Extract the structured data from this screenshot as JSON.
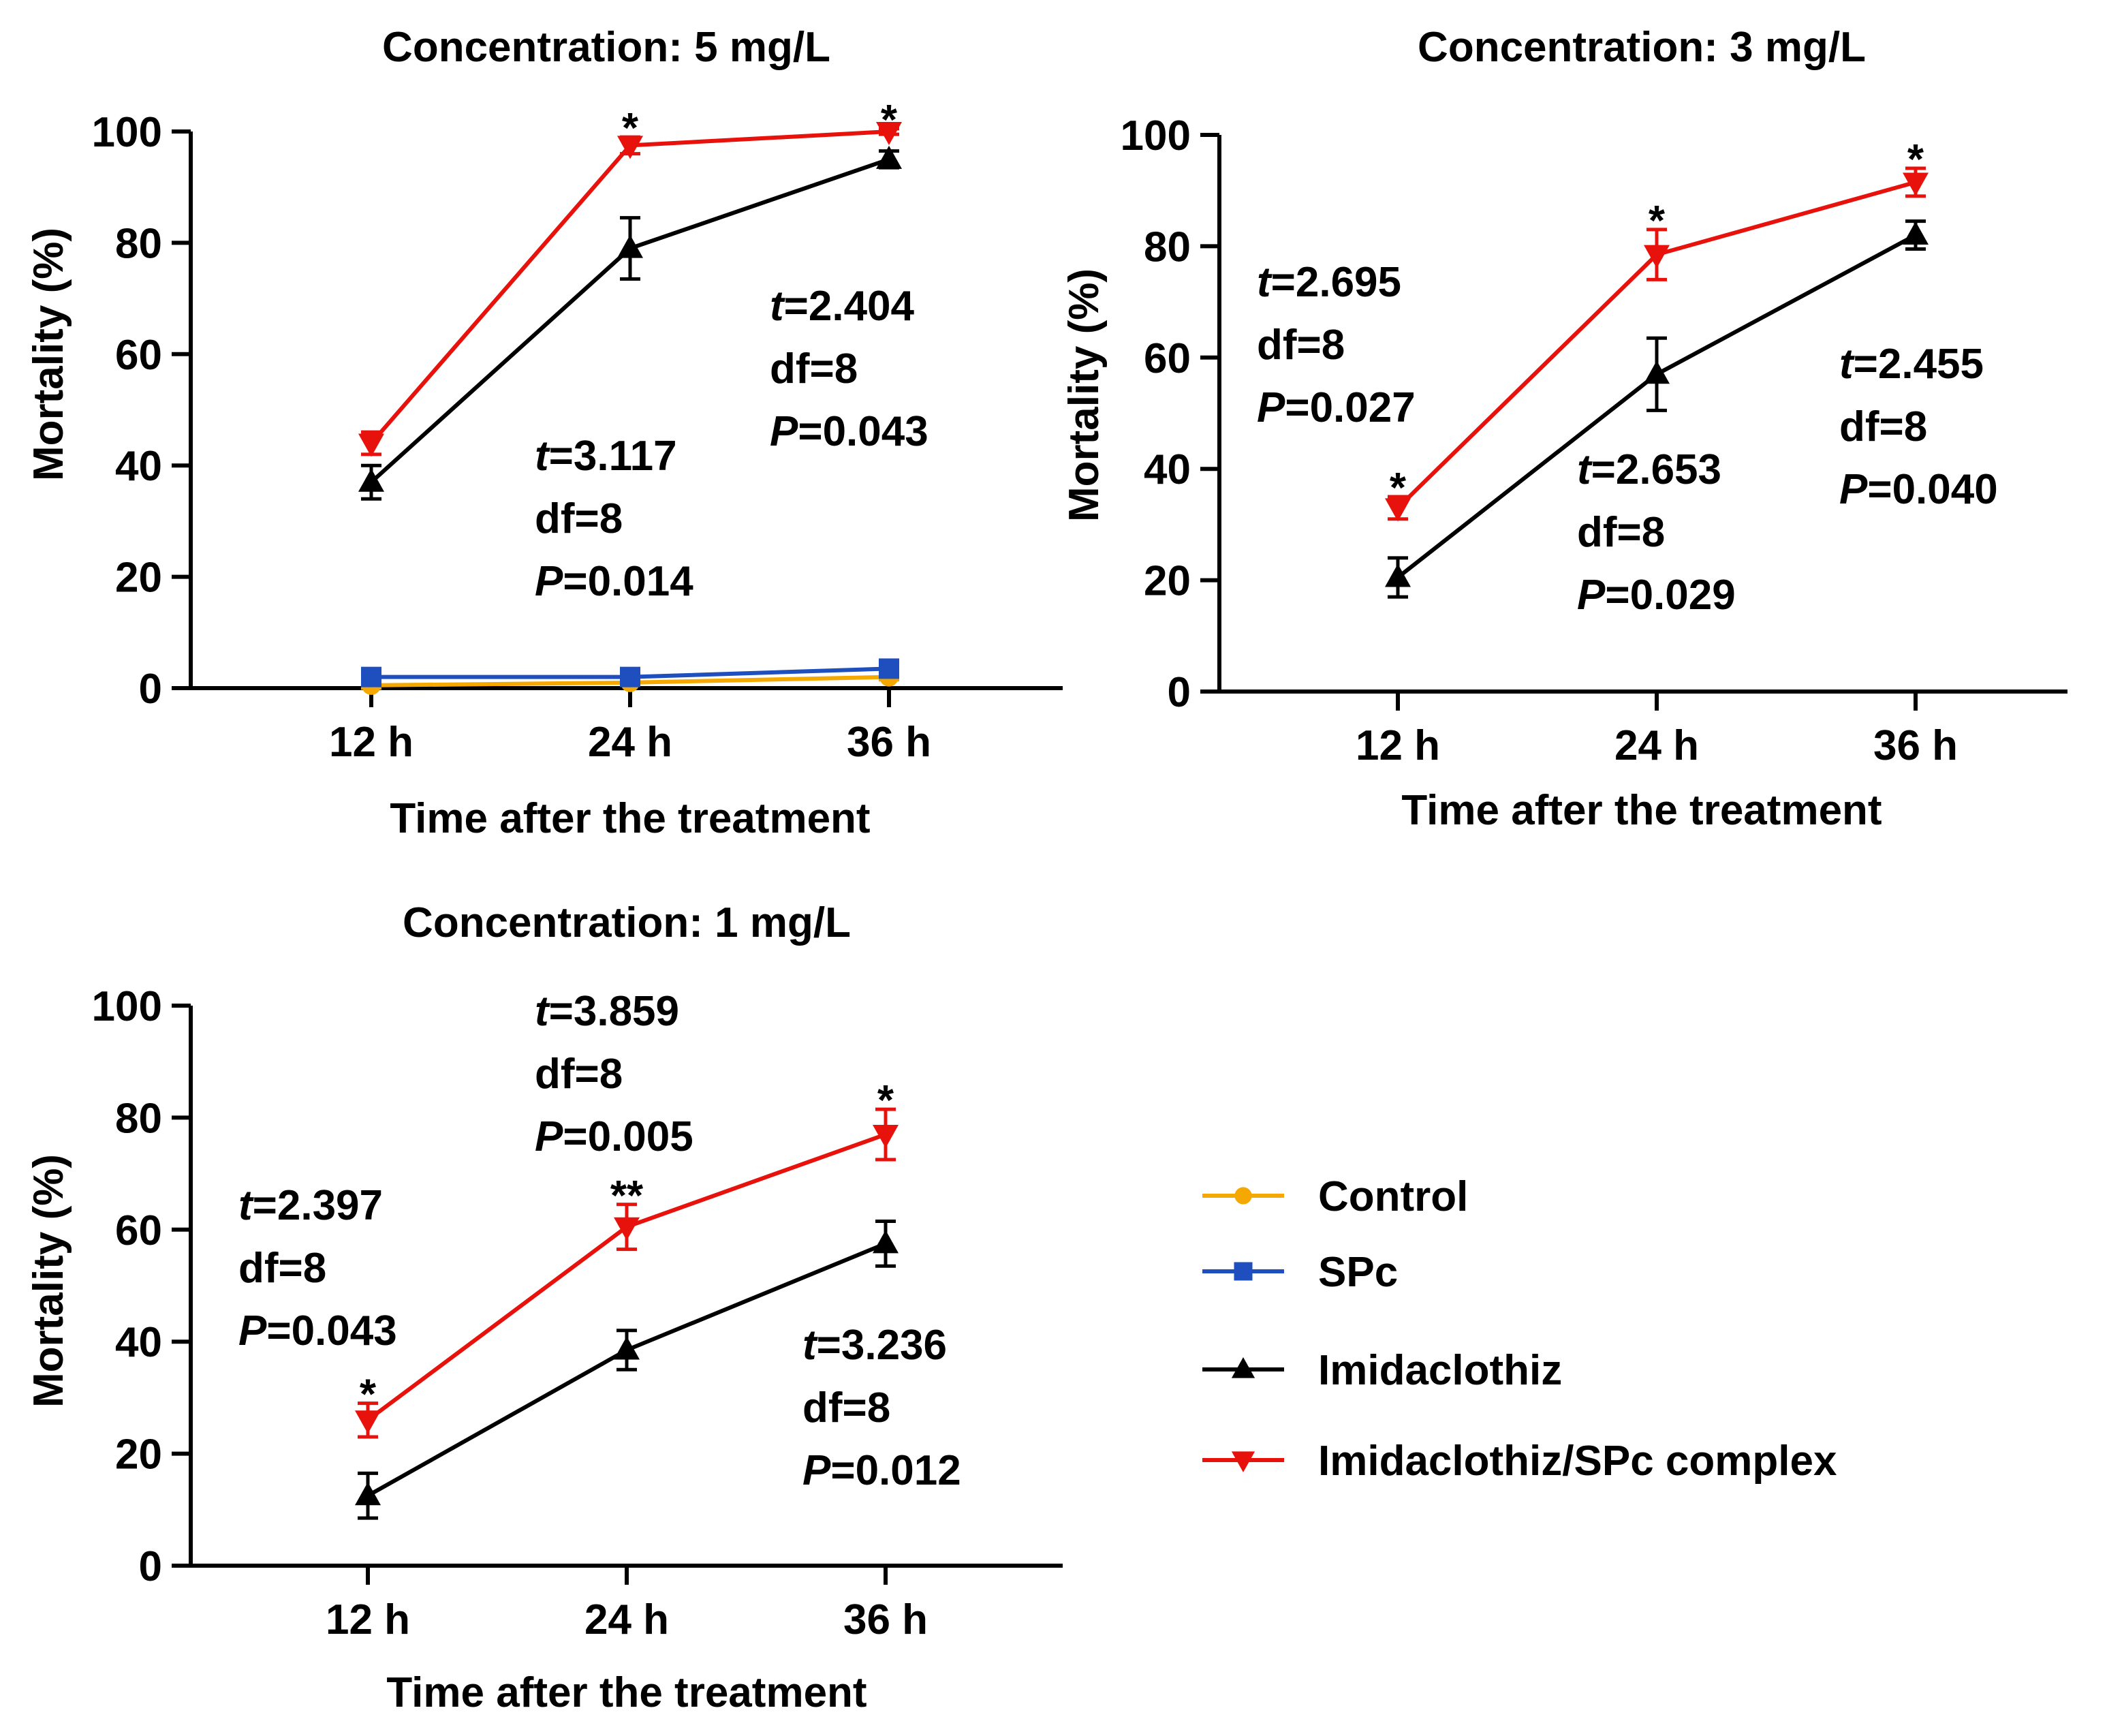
{
  "chart_data": [
    {
      "type": "line",
      "title": "Concentration: 5 mg/L",
      "xlabel": "Time after the treatment",
      "ylabel": "Mortality (%)",
      "categories": [
        "12 h",
        "24 h",
        "36 h"
      ],
      "yticks": [
        "0",
        "20",
        "40",
        "60",
        "80",
        "100"
      ],
      "ylim": [
        0,
        100
      ],
      "series": [
        {
          "name": "Control",
          "color": "#f5a800",
          "marker": "circle",
          "values": [
            0.5,
            1,
            2
          ],
          "errors": [
            0.5,
            0.5,
            0.5
          ]
        },
        {
          "name": "SPc",
          "color": "#1f4fbf",
          "marker": "square",
          "values": [
            2,
            2,
            3.5
          ],
          "errors": [
            0.5,
            0.5,
            1
          ]
        },
        {
          "name": "Imidaclothiz",
          "color": "#000000",
          "marker": "triangle-up",
          "values": [
            37,
            79,
            95
          ],
          "errors": [
            3,
            5.5,
            1.5
          ]
        },
        {
          "name": "Imidaclothiz/SPc complex",
          "color": "#e8120c",
          "marker": "triangle-down",
          "values": [
            44,
            97.5,
            100
          ],
          "errors": [
            2,
            1.5,
            0.5
          ]
        }
      ],
      "significance": [
        "",
        "*",
        "*"
      ],
      "annotations": [
        {
          "t": "3.117",
          "df": "8",
          "p": "0.014"
        },
        {
          "t": "2.404",
          "df": "8",
          "p": "0.043"
        }
      ]
    },
    {
      "type": "line",
      "title": "Concentration: 3 mg/L",
      "xlabel": "Time after the treatment",
      "ylabel": "Mortality (%)",
      "categories": [
        "12 h",
        "24 h",
        "36 h"
      ],
      "yticks": [
        "0",
        "20",
        "40",
        "60",
        "80",
        "100"
      ],
      "ylim": [
        0,
        100
      ],
      "series": [
        {
          "name": "Imidaclothiz",
          "color": "#000000",
          "marker": "triangle-up",
          "values": [
            20.5,
            57,
            82
          ],
          "errors": [
            3.5,
            6.5,
            2.5
          ]
        },
        {
          "name": "Imidaclothiz/SPc complex",
          "color": "#e8120c",
          "marker": "triangle-down",
          "values": [
            33,
            78.5,
            91.5
          ],
          "errors": [
            2,
            4.5,
            2.5
          ]
        }
      ],
      "significance": [
        "*",
        "*",
        "*"
      ],
      "annotations": [
        {
          "t": "2.695",
          "df": "8",
          "p": "0.027"
        },
        {
          "t": "2.653",
          "df": "8",
          "p": "0.029"
        },
        {
          "t": "2.455",
          "df": "8",
          "p": "0.040"
        }
      ]
    },
    {
      "type": "line",
      "title": "Concentration: 1 mg/L",
      "xlabel": "Time after the treatment",
      "ylabel": "Mortality (%)",
      "categories": [
        "12 h",
        "24 h",
        "36 h"
      ],
      "yticks": [
        "0",
        "20",
        "40",
        "60",
        "80",
        "100"
      ],
      "ylim": [
        0,
        100
      ],
      "series": [
        {
          "name": "Imidaclothiz",
          "color": "#000000",
          "marker": "triangle-up",
          "values": [
            12.5,
            38.5,
            57.5
          ],
          "errors": [
            4,
            3.5,
            4
          ]
        },
        {
          "name": "Imidaclothiz/SPc complex",
          "color": "#e8120c",
          "marker": "triangle-down",
          "values": [
            26,
            60.5,
            77
          ],
          "errors": [
            3,
            4,
            4.5
          ]
        }
      ],
      "significance": [
        "*",
        "**",
        "*"
      ],
      "annotations": [
        {
          "t": "2.397",
          "df": "8",
          "p": "0.043"
        },
        {
          "t": "3.859",
          "df": "8",
          "p": "0.005"
        },
        {
          "t": "3.236",
          "df": "8",
          "p": "0.012"
        }
      ]
    }
  ],
  "legend": [
    {
      "label": "Control",
      "color": "#f5a800",
      "marker": "circle"
    },
    {
      "label": "SPc",
      "color": "#1f4fbf",
      "marker": "square"
    },
    {
      "label": "Imidaclothiz",
      "color": "#000000",
      "marker": "triangle-up"
    },
    {
      "label": "Imidaclothiz/SPc complex",
      "color": "#e8120c",
      "marker": "triangle-down"
    }
  ],
  "stat_labels": {
    "t": "t",
    "df": "df",
    "p": "P"
  }
}
